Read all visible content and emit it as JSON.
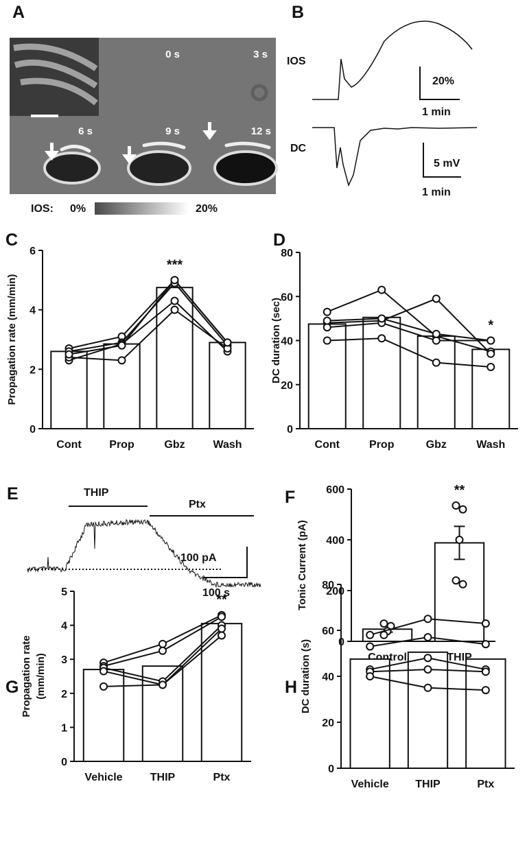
{
  "chart_data": [
    {
      "panel": "C",
      "type": "bar",
      "ylabel": [
        "Propagation rate (mm/min)"
      ],
      "categories": [
        "Cont",
        "Prop",
        "Gbz",
        "Wash"
      ],
      "values": [
        2.6,
        2.85,
        4.75,
        2.9
      ],
      "color": "#ffffff",
      "subjects": [
        [
          2.7,
          3.1,
          5.0,
          2.9
        ],
        [
          2.6,
          2.9,
          4.9,
          2.8
        ],
        [
          2.3,
          2.85,
          4.3,
          2.6
        ],
        [
          2.4,
          2.3,
          4.0,
          2.7
        ],
        [
          2.5,
          2.8,
          5.0,
          2.9
        ]
      ],
      "ylim": [
        0,
        6
      ],
      "yticks": [
        0,
        2,
        4,
        6
      ],
      "annotations": [
        {
          "text": "***",
          "category": "Gbz"
        }
      ]
    },
    {
      "panel": "D",
      "type": "bar",
      "ylabel": [
        "DC duration (sec)"
      ],
      "categories": [
        "Cont",
        "Prop",
        "Gbz",
        "Wash"
      ],
      "values": [
        47.5,
        50.5,
        42,
        36
      ],
      "color": "#ffffff",
      "subjects": [
        [
          53,
          63,
          42,
          35
        ],
        [
          48,
          49,
          59,
          34
        ],
        [
          46,
          48,
          40,
          40
        ],
        [
          49,
          50,
          43,
          40
        ],
        [
          40,
          41,
          30,
          28
        ]
      ],
      "ylim": [
        0,
        80
      ],
      "yticks": [
        0,
        20,
        40,
        60,
        80
      ],
      "annotations": [
        {
          "text": "*",
          "category": "Wash"
        }
      ]
    },
    {
      "panel": "F",
      "type": "bar",
      "ylabel": [
        "Tonic Current (pA)"
      ],
      "categories": [
        "Control",
        "THIP"
      ],
      "values": [
        48,
        388
      ],
      "errors": [
        12,
        65
      ],
      "color": "#ffffff",
      "points": [
        [
          70,
          60,
          40,
          25
        ],
        [
          535,
          520,
          400,
          240,
          225
        ]
      ],
      "ylim": [
        0,
        600
      ],
      "yticks": [
        0,
        200,
        400,
        600
      ],
      "annotations": [
        {
          "text": "**",
          "category": "THIP"
        }
      ]
    },
    {
      "panel": "G",
      "type": "bar",
      "ylabel": [
        "Propagation rate",
        "(mm/min)"
      ],
      "categories": [
        "Vehicle",
        "THIP",
        "Ptx"
      ],
      "values": [
        2.7,
        2.8,
        4.05
      ],
      "color": "#ffffff",
      "subjects": [
        [
          2.9,
          3.45,
          4.3
        ],
        [
          2.8,
          3.25,
          4.25
        ],
        [
          2.75,
          2.35,
          4.0
        ],
        [
          2.65,
          2.25,
          3.9
        ],
        [
          2.2,
          2.25,
          3.7
        ]
      ],
      "ylim": [
        0,
        5
      ],
      "yticks": [
        0,
        1,
        2,
        3,
        4,
        5
      ],
      "annotations": [
        {
          "text": "**",
          "category": "Ptx"
        }
      ]
    },
    {
      "panel": "H",
      "type": "bar",
      "ylabel": [
        "DC duration (s)"
      ],
      "categories": [
        "Vehicle",
        "THIP",
        "Ptx"
      ],
      "values": [
        47.5,
        50.5,
        47.5
      ],
      "color": "#ffffff",
      "subjects": [
        [
          58,
          65,
          63
        ],
        [
          53,
          57,
          54
        ],
        [
          43,
          48,
          43
        ],
        [
          42,
          43,
          42
        ],
        [
          40,
          35,
          34
        ]
      ],
      "ylim": [
        0,
        80
      ],
      "yticks": [
        0,
        20,
        40,
        60,
        80
      ],
      "annotations": []
    }
  ],
  "panel_a": {
    "label": "A",
    "times": [
      "0 s",
      "3 s",
      "6 s",
      "9 s",
      "12 s"
    ],
    "scale_label": "IOS:",
    "scale_min": "0%",
    "scale_max": "20%"
  },
  "panel_b": {
    "label": "B",
    "trace1": "IOS",
    "bar1_v": "20%",
    "bar1_h": "1 min",
    "trace2": "DC",
    "bar2_v": "5 mV",
    "bar2_h": "1 min"
  },
  "panel_e": {
    "label": "E",
    "drug1": "THIP",
    "drug2": "Ptx",
    "bar_v": "100 pA",
    "bar_h": "100 s"
  }
}
